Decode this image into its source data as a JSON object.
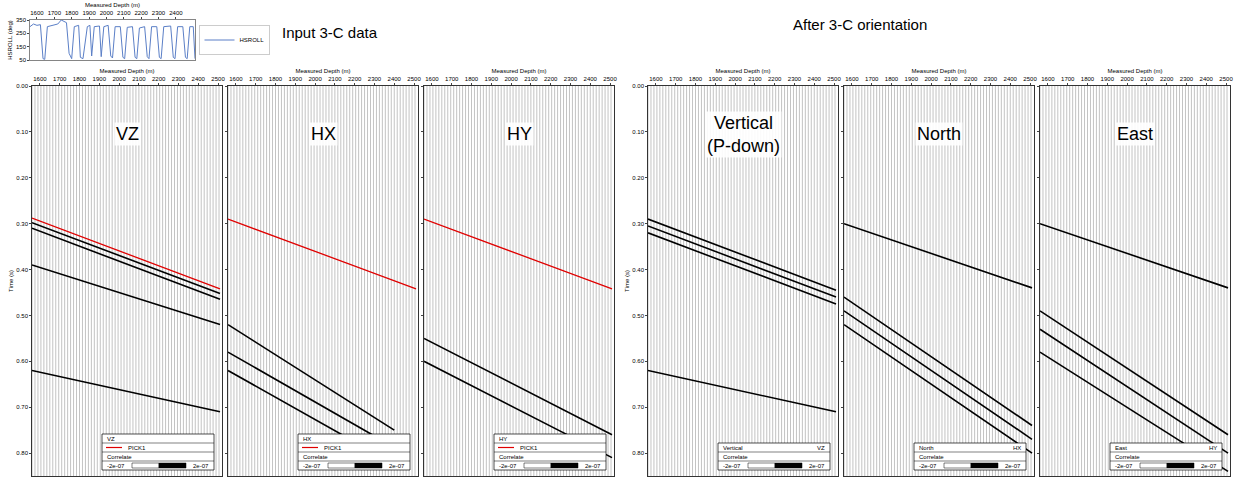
{
  "chart_data": {
    "type": "seismic_panels",
    "headings": [
      "Input 3-C data",
      "After 3-C orientation"
    ],
    "hsroll_chart": {
      "type": "line",
      "xlabel": "Measured Depth (m)",
      "ylabel": "HSROLL (deg)",
      "xlim": [
        1560,
        2510
      ],
      "xticks": [
        1600,
        1700,
        1800,
        1900,
        2000,
        2100,
        2200,
        2300,
        2400
      ],
      "ylim": [
        50,
        350
      ],
      "yticks": [
        50,
        150,
        250,
        350
      ],
      "legend": "right",
      "series": [
        {
          "name": "HSROLL",
          "color": "#5b7fc7",
          "x": [
            1560,
            1580,
            1600,
            1620,
            1635,
            1645,
            1660,
            1690,
            1720,
            1740,
            1755,
            1770,
            1785,
            1800,
            1815,
            1840,
            1850,
            1865,
            1890,
            1905,
            1915,
            1930,
            1960,
            1970,
            1985,
            2010,
            2025,
            2035,
            2050,
            2080,
            2095,
            2105,
            2120,
            2150,
            2165,
            2175,
            2190,
            2220,
            2235,
            2245,
            2260,
            2290,
            2305,
            2315,
            2330,
            2370,
            2385,
            2395,
            2410,
            2440,
            2455,
            2465,
            2480,
            2500,
            2510
          ],
          "values": [
            300,
            320,
            310,
            315,
            60,
            55,
            300,
            310,
            320,
            350,
            340,
            330,
            100,
            60,
            300,
            310,
            70,
            60,
            300,
            310,
            80,
            300,
            305,
            75,
            300,
            310,
            80,
            65,
            300,
            300,
            70,
            60,
            295,
            300,
            70,
            60,
            290,
            300,
            75,
            60,
            300,
            300,
            70,
            60,
            300,
            305,
            70,
            60,
            300,
            300,
            70,
            60,
            300,
            300,
            60
          ]
        }
      ]
    },
    "receiver_depths": [
      1560,
      1575,
      1590,
      1605,
      1620,
      1635,
      1650,
      1665,
      1680,
      1695,
      1710,
      1725,
      1740,
      1755,
      1770,
      1785,
      1800,
      1815,
      1830,
      1845,
      1860,
      1875,
      1890,
      1905,
      1920,
      1935,
      1950,
      1965,
      1980,
      1995,
      2010,
      2025,
      2040,
      2055,
      2070,
      2085,
      2100,
      2115,
      2130,
      2145,
      2160,
      2175,
      2190,
      2205,
      2220,
      2235,
      2250,
      2265,
      2280,
      2295,
      2310,
      2325,
      2340,
      2355,
      2370,
      2385,
      2400,
      2415,
      2430,
      2445,
      2460,
      2475,
      2490,
      2505
    ],
    "panels": [
      {
        "title": "VZ",
        "xlabel": "Measured Depth (m)",
        "ylabel": "Time (s)",
        "xlim": [
          1560,
          2520
        ],
        "xticks": [
          1600,
          1700,
          1800,
          1900,
          2000,
          2100,
          2200,
          2300,
          2400,
          2500
        ],
        "ylim": [
          0.85,
          0
        ],
        "yticks": [
          {
            "value": 0,
            "label": "0.00"
          },
          {
            "value": 0.1,
            "label": "0.10"
          },
          {
            "value": 0.2,
            "label": "0.20"
          },
          {
            "value": 0.3,
            "label": "0.30"
          },
          {
            "value": 0.4,
            "label": "0.40"
          },
          {
            "value": 0.5,
            "label": "0.50"
          },
          {
            "value": 0.6,
            "label": "0.60"
          },
          {
            "value": 0.7,
            "label": "0.70"
          },
          {
            "value": 0.8,
            "label": "0.80"
          }
        ],
        "series": [
          {
            "name": "PICK1",
            "color": "#e00000",
            "x": [
              1560,
              2510
            ],
            "values": [
              0.288,
              0.442
            ]
          }
        ],
        "events": [
          {
            "x": [
              1560,
              2510
            ],
            "values": [
              0.298,
              0.452
            ]
          },
          {
            "x": [
              1560,
              2510
            ],
            "values": [
              0.31,
              0.465
            ]
          },
          {
            "x": [
              1560,
              2510
            ],
            "values": [
              0.39,
              0.52
            ]
          },
          {
            "x": [
              1560,
              2510
            ],
            "values": [
              0.62,
              0.71
            ]
          }
        ],
        "key": {
          "rows": [
            {
              "text": "VZ"
            },
            {
              "text": "PICK1"
            },
            {
              "text": "Correlate"
            }
          ],
          "scale": [
            {
              "value": -2e-07,
              "label": "-2e-07"
            },
            {
              "value": 2e-07,
              "label": "2e-07"
            }
          ]
        }
      },
      {
        "title": "HX",
        "xlabel": "Measured Depth (m)",
        "xlim": [
          1560,
          2520
        ],
        "xticks": [
          1600,
          1700,
          1800,
          1900,
          2000,
          2100,
          2200,
          2300,
          2400,
          2500
        ],
        "ylim": [
          0.85,
          0
        ],
        "yticks": [
          {
            "value": 0,
            "label": "0.00"
          },
          {
            "value": 0.1,
            "label": "0.10"
          },
          {
            "value": 0.2,
            "label": "0.20"
          },
          {
            "value": 0.3,
            "label": "0.30"
          },
          {
            "value": 0.4,
            "label": "0.40"
          },
          {
            "value": 0.5,
            "label": "0.50"
          },
          {
            "value": 0.6,
            "label": "0.60"
          },
          {
            "value": 0.7,
            "label": "0.70"
          },
          {
            "value": 0.8,
            "label": "0.80"
          }
        ],
        "tick_labels": "x",
        "series": [
          {
            "name": "PICK1",
            "color": "#e00000",
            "x": [
              1560,
              2510
            ],
            "values": [
              0.29,
              0.442
            ]
          }
        ],
        "events": [
          {
            "x": [
              1560,
              2400
            ],
            "values": [
              0.52,
              0.75
            ]
          },
          {
            "x": [
              1560,
              2450
            ],
            "values": [
              0.58,
              0.8
            ]
          },
          {
            "x": [
              1560,
              2300
            ],
            "values": [
              0.62,
              0.8
            ]
          }
        ],
        "key": {
          "rows": [
            {
              "text": "HX"
            },
            {
              "text": "PICK1"
            },
            {
              "text": "Correlate"
            }
          ],
          "scale": [
            {
              "value": -2e-07,
              "label": "-2e-07"
            },
            {
              "value": 2e-07,
              "label": "2e-07"
            }
          ]
        }
      },
      {
        "title": "HY",
        "xlabel": "Measured Depth (m)",
        "xlim": [
          1560,
          2520
        ],
        "xticks": [
          1600,
          1700,
          1800,
          1900,
          2000,
          2100,
          2200,
          2300,
          2400,
          2500
        ],
        "ylim": [
          0.85,
          0
        ],
        "yticks": [
          {
            "value": 0,
            "label": "0.00"
          },
          {
            "value": 0.1,
            "label": "0.10"
          },
          {
            "value": 0.2,
            "label": "0.20"
          },
          {
            "value": 0.3,
            "label": "0.30"
          },
          {
            "value": 0.4,
            "label": "0.40"
          },
          {
            "value": 0.5,
            "label": "0.50"
          },
          {
            "value": 0.6,
            "label": "0.60"
          },
          {
            "value": 0.7,
            "label": "0.70"
          },
          {
            "value": 0.8,
            "label": "0.80"
          }
        ],
        "tick_labels": "x",
        "series": [
          {
            "name": "PICK1",
            "color": "#e00000",
            "x": [
              1560,
              2510
            ],
            "values": [
              0.29,
              0.442
            ]
          }
        ],
        "events": [
          {
            "x": [
              1560,
              2510
            ],
            "values": [
              0.55,
              0.76
            ]
          },
          {
            "x": [
              1560,
              2510
            ],
            "values": [
              0.6,
              0.81
            ]
          }
        ],
        "key": {
          "rows": [
            {
              "text": "HY"
            },
            {
              "text": "PICK1"
            },
            {
              "text": "Correlate"
            }
          ],
          "scale": [
            {
              "value": -2e-07,
              "label": "-2e-07"
            },
            {
              "value": 2e-07,
              "label": "2e-07"
            }
          ]
        }
      },
      {
        "title": "Vertical (P-down)",
        "xlabel": "Measured Depth (m)",
        "ylabel": "Time (s)",
        "xlim": [
          1560,
          2520
        ],
        "xticks": [
          1600,
          1700,
          1800,
          1900,
          2000,
          2100,
          2200,
          2300,
          2400,
          2500
        ],
        "ylim": [
          0.85,
          0
        ],
        "yticks": [
          {
            "value": 0,
            "label": "0.00"
          },
          {
            "value": 0.1,
            "label": "0.10"
          },
          {
            "value": 0.2,
            "label": "0.20"
          },
          {
            "value": 0.3,
            "label": "0.30"
          },
          {
            "value": 0.4,
            "label": "0.40"
          },
          {
            "value": 0.5,
            "label": "0.50"
          },
          {
            "value": 0.6,
            "label": "0.60"
          },
          {
            "value": 0.7,
            "label": "0.70"
          },
          {
            "value": 0.8,
            "label": "0.80"
          }
        ],
        "events": [
          {
            "x": [
              1560,
              2510
            ],
            "values": [
              0.29,
              0.445
            ]
          },
          {
            "x": [
              1560,
              2510
            ],
            "values": [
              0.305,
              0.46
            ]
          },
          {
            "x": [
              1560,
              2510
            ],
            "values": [
              0.32,
              0.475
            ]
          },
          {
            "x": [
              1560,
              2510
            ],
            "values": [
              0.62,
              0.71
            ]
          }
        ],
        "key": {
          "rows": [
            {
              "text": "Vertical",
              "right": "VZ"
            },
            {
              "text": "Correlate"
            }
          ],
          "scale": [
            {
              "value": -2e-07,
              "label": "-2e-07"
            },
            {
              "value": 2e-07,
              "label": "2e-07"
            }
          ]
        }
      },
      {
        "title": "North",
        "xlabel": "Measured Depth (m)",
        "xlim": [
          1560,
          2520
        ],
        "xticks": [
          1600,
          1700,
          1800,
          1900,
          2000,
          2100,
          2200,
          2300,
          2400,
          2500
        ],
        "ylim": [
          0.85,
          0
        ],
        "yticks": [
          {
            "value": 0,
            "label": "0.00"
          },
          {
            "value": 0.1,
            "label": "0.10"
          },
          {
            "value": 0.2,
            "label": "0.20"
          },
          {
            "value": 0.3,
            "label": "0.30"
          },
          {
            "value": 0.4,
            "label": "0.40"
          },
          {
            "value": 0.5,
            "label": "0.50"
          },
          {
            "value": 0.6,
            "label": "0.60"
          },
          {
            "value": 0.7,
            "label": "0.70"
          },
          {
            "value": 0.8,
            "label": "0.80"
          }
        ],
        "tick_labels": "x",
        "events": [
          {
            "x": [
              1560,
              2510
            ],
            "values": [
              0.3,
              0.44
            ]
          },
          {
            "x": [
              1560,
              2510
            ],
            "values": [
              0.46,
              0.74
            ]
          },
          {
            "x": [
              1560,
              2510
            ],
            "values": [
              0.49,
              0.77
            ]
          },
          {
            "x": [
              1560,
              2510
            ],
            "values": [
              0.52,
              0.8
            ]
          }
        ],
        "key": {
          "rows": [
            {
              "text": "North",
              "right": "HX"
            },
            {
              "text": "Correlate"
            }
          ],
          "scale": [
            {
              "value": -2e-07,
              "label": "-2e-07"
            },
            {
              "value": 2e-07,
              "label": "2e-07"
            }
          ]
        }
      },
      {
        "title": "East",
        "xlabel": "Measured Depth (m)",
        "xlim": [
          1560,
          2520
        ],
        "xticks": [
          1600,
          1700,
          1800,
          1900,
          2000,
          2100,
          2200,
          2300,
          2400,
          2500
        ],
        "ylim": [
          0.85,
          0
        ],
        "yticks": [
          {
            "value": 0,
            "label": "0.00"
          },
          {
            "value": 0.1,
            "label": "0.10"
          },
          {
            "value": 0.2,
            "label": "0.20"
          },
          {
            "value": 0.3,
            "label": "0.30"
          },
          {
            "value": 0.4,
            "label": "0.40"
          },
          {
            "value": 0.5,
            "label": "0.50"
          },
          {
            "value": 0.6,
            "label": "0.60"
          },
          {
            "value": 0.7,
            "label": "0.70"
          },
          {
            "value": 0.8,
            "label": "0.80"
          }
        ],
        "tick_labels": "x",
        "events": [
          {
            "x": [
              1560,
              2510
            ],
            "values": [
              0.3,
              0.44
            ]
          },
          {
            "x": [
              1560,
              2510
            ],
            "values": [
              0.49,
              0.76
            ]
          },
          {
            "x": [
              1560,
              2510
            ],
            "values": [
              0.53,
              0.8
            ]
          },
          {
            "x": [
              1560,
              2510
            ],
            "values": [
              0.58,
              0.84
            ]
          }
        ],
        "key": {
          "rows": [
            {
              "text": "East",
              "right": "HY"
            },
            {
              "text": "Correlate"
            }
          ],
          "scale": [
            {
              "value": -2e-07,
              "label": "-2e-07"
            },
            {
              "value": 2e-07,
              "label": "2e-07"
            }
          ]
        }
      }
    ]
  }
}
